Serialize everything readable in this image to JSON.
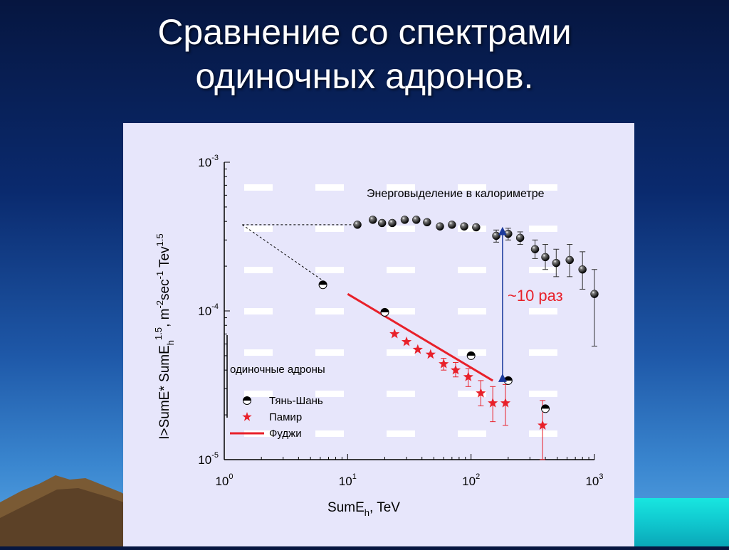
{
  "slide": {
    "title_line1": "Сравнение со спектрами",
    "title_line2": "одиночных адронов."
  },
  "colors": {
    "background_top": "#061640",
    "panel": "#e7e6fb",
    "red": "#e8202a",
    "arrow": "#1c3a9c",
    "black": "#000000"
  },
  "chart_data": {
    "type": "scatter",
    "x_scale": "log",
    "y_scale": "log",
    "xlim": [
      1,
      1000
    ],
    "ylim": [
      1e-05,
      0.001
    ],
    "xlabel_main": "SumE",
    "xlabel_sub": "h",
    "xlabel_tail": ", TeV",
    "ylabel_part1": "I>SumE* SumE",
    "ylabel_sub1": "h",
    "ylabel_sup1": "1.5",
    "ylabel_part2": ", m",
    "ylabel_sup2": "-2",
    "ylabel_part3": "sec",
    "ylabel_sup3": "-1",
    "ylabel_part4": " Tev",
    "ylabel_sup4": "1.5",
    "x_ticks": [
      {
        "value": 1,
        "base": "10",
        "exp": "0"
      },
      {
        "value": 10,
        "base": "10",
        "exp": "1"
      },
      {
        "value": 100,
        "base": "10",
        "exp": "2"
      },
      {
        "value": 1000,
        "base": "10",
        "exp": "3"
      }
    ],
    "y_ticks": [
      {
        "value": 0.001,
        "base": "10",
        "exp": "-3"
      },
      {
        "value": 0.0001,
        "base": "10",
        "exp": "-4"
      },
      {
        "value": 1e-05,
        "base": "10",
        "exp": "-5"
      }
    ],
    "series": [
      {
        "key": "calorimeter",
        "marker": "black-ball",
        "points": [
          {
            "x": 12,
            "y": 0.00038
          },
          {
            "x": 16,
            "y": 0.00041
          },
          {
            "x": 19,
            "y": 0.00039
          },
          {
            "x": 23,
            "y": 0.00039
          },
          {
            "x": 29,
            "y": 0.00041
          },
          {
            "x": 36,
            "y": 0.00041
          },
          {
            "x": 44,
            "y": 0.000395
          },
          {
            "x": 56,
            "y": 0.00037
          },
          {
            "x": 70,
            "y": 0.00038
          },
          {
            "x": 88,
            "y": 0.00037
          },
          {
            "x": 110,
            "y": 0.000365
          },
          {
            "x": 160,
            "y": 0.00032,
            "ylo": 0.00029,
            "yhi": 0.00035
          },
          {
            "x": 200,
            "y": 0.00033,
            "ylo": 0.0003,
            "yhi": 0.00036
          },
          {
            "x": 250,
            "y": 0.00031,
            "ylo": 0.00028,
            "yhi": 0.00034
          },
          {
            "x": 330,
            "y": 0.00026,
            "ylo": 0.000225,
            "yhi": 0.0003
          },
          {
            "x": 400,
            "y": 0.00023,
            "ylo": 0.00019,
            "yhi": 0.00028
          },
          {
            "x": 490,
            "y": 0.00021,
            "ylo": 0.00017,
            "yhi": 0.00026
          },
          {
            "x": 630,
            "y": 0.00022,
            "ylo": 0.00017,
            "yhi": 0.00028
          },
          {
            "x": 800,
            "y": 0.00019,
            "ylo": 0.00014,
            "yhi": 0.00025
          },
          {
            "x": 1000,
            "y": 0.00013,
            "ylo": 5.8e-05,
            "yhi": 0.00019
          }
        ]
      },
      {
        "key": "tien_shan",
        "name": "Тянь-Шань",
        "marker": "half-ball",
        "points": [
          {
            "x": 6.3,
            "y": 0.00015
          },
          {
            "x": 20,
            "y": 9.8e-05
          },
          {
            "x": 100,
            "y": 5e-05
          },
          {
            "x": 200,
            "y": 3.4e-05
          },
          {
            "x": 400,
            "y": 2.2e-05
          }
        ]
      },
      {
        "key": "pamir",
        "name": "Памир",
        "marker": "red-star",
        "points": [
          {
            "x": 24,
            "y": 7e-05
          },
          {
            "x": 30,
            "y": 6.2e-05
          },
          {
            "x": 37,
            "y": 5.5e-05
          },
          {
            "x": 47,
            "y": 5.1e-05
          },
          {
            "x": 60,
            "y": 4.4e-05,
            "ylo": 4e-05,
            "yhi": 4.8e-05
          },
          {
            "x": 75,
            "y": 4e-05,
            "ylo": 3.6e-05,
            "yhi": 4.5e-05
          },
          {
            "x": 95,
            "y": 3.6e-05,
            "ylo": 3.1e-05,
            "yhi": 4.1e-05
          },
          {
            "x": 120,
            "y": 2.8e-05,
            "ylo": 2.3e-05,
            "yhi": 3.4e-05
          },
          {
            "x": 150,
            "y": 2.4e-05,
            "ylo": 1.8e-05,
            "yhi": 3.1e-05
          },
          {
            "x": 190,
            "y": 2.4e-05,
            "ylo": 1.7e-05,
            "yhi": 3.2e-05
          },
          {
            "x": 380,
            "y": 1.7e-05,
            "ylo": 1e-05,
            "yhi": 2.5e-05
          }
        ]
      },
      {
        "key": "fuji",
        "name": "Фуджи",
        "type": "line",
        "points": [
          {
            "x": 10,
            "y": 0.00013
          },
          {
            "x": 150,
            "y": 3.4e-05
          }
        ]
      }
    ],
    "dashed_guides": [
      {
        "points": [
          {
            "x": 1.4,
            "y": 0.00038
          },
          {
            "x": 12,
            "y": 0.00038
          }
        ]
      },
      {
        "points": [
          {
            "x": 1.4,
            "y": 0.00038
          },
          {
            "x": 6.3,
            "y": 0.00016
          }
        ]
      }
    ],
    "annotations": {
      "calorimeter_label": "Энерговыделение в калориметре",
      "ratio_label": "~10 раз",
      "ratio_arrow": {
        "x": 180,
        "y_top": 0.00036,
        "y_bottom": 3.4e-05
      },
      "legend_group_label": "одиночные адроны",
      "legend_position": "bottom-left"
    }
  }
}
